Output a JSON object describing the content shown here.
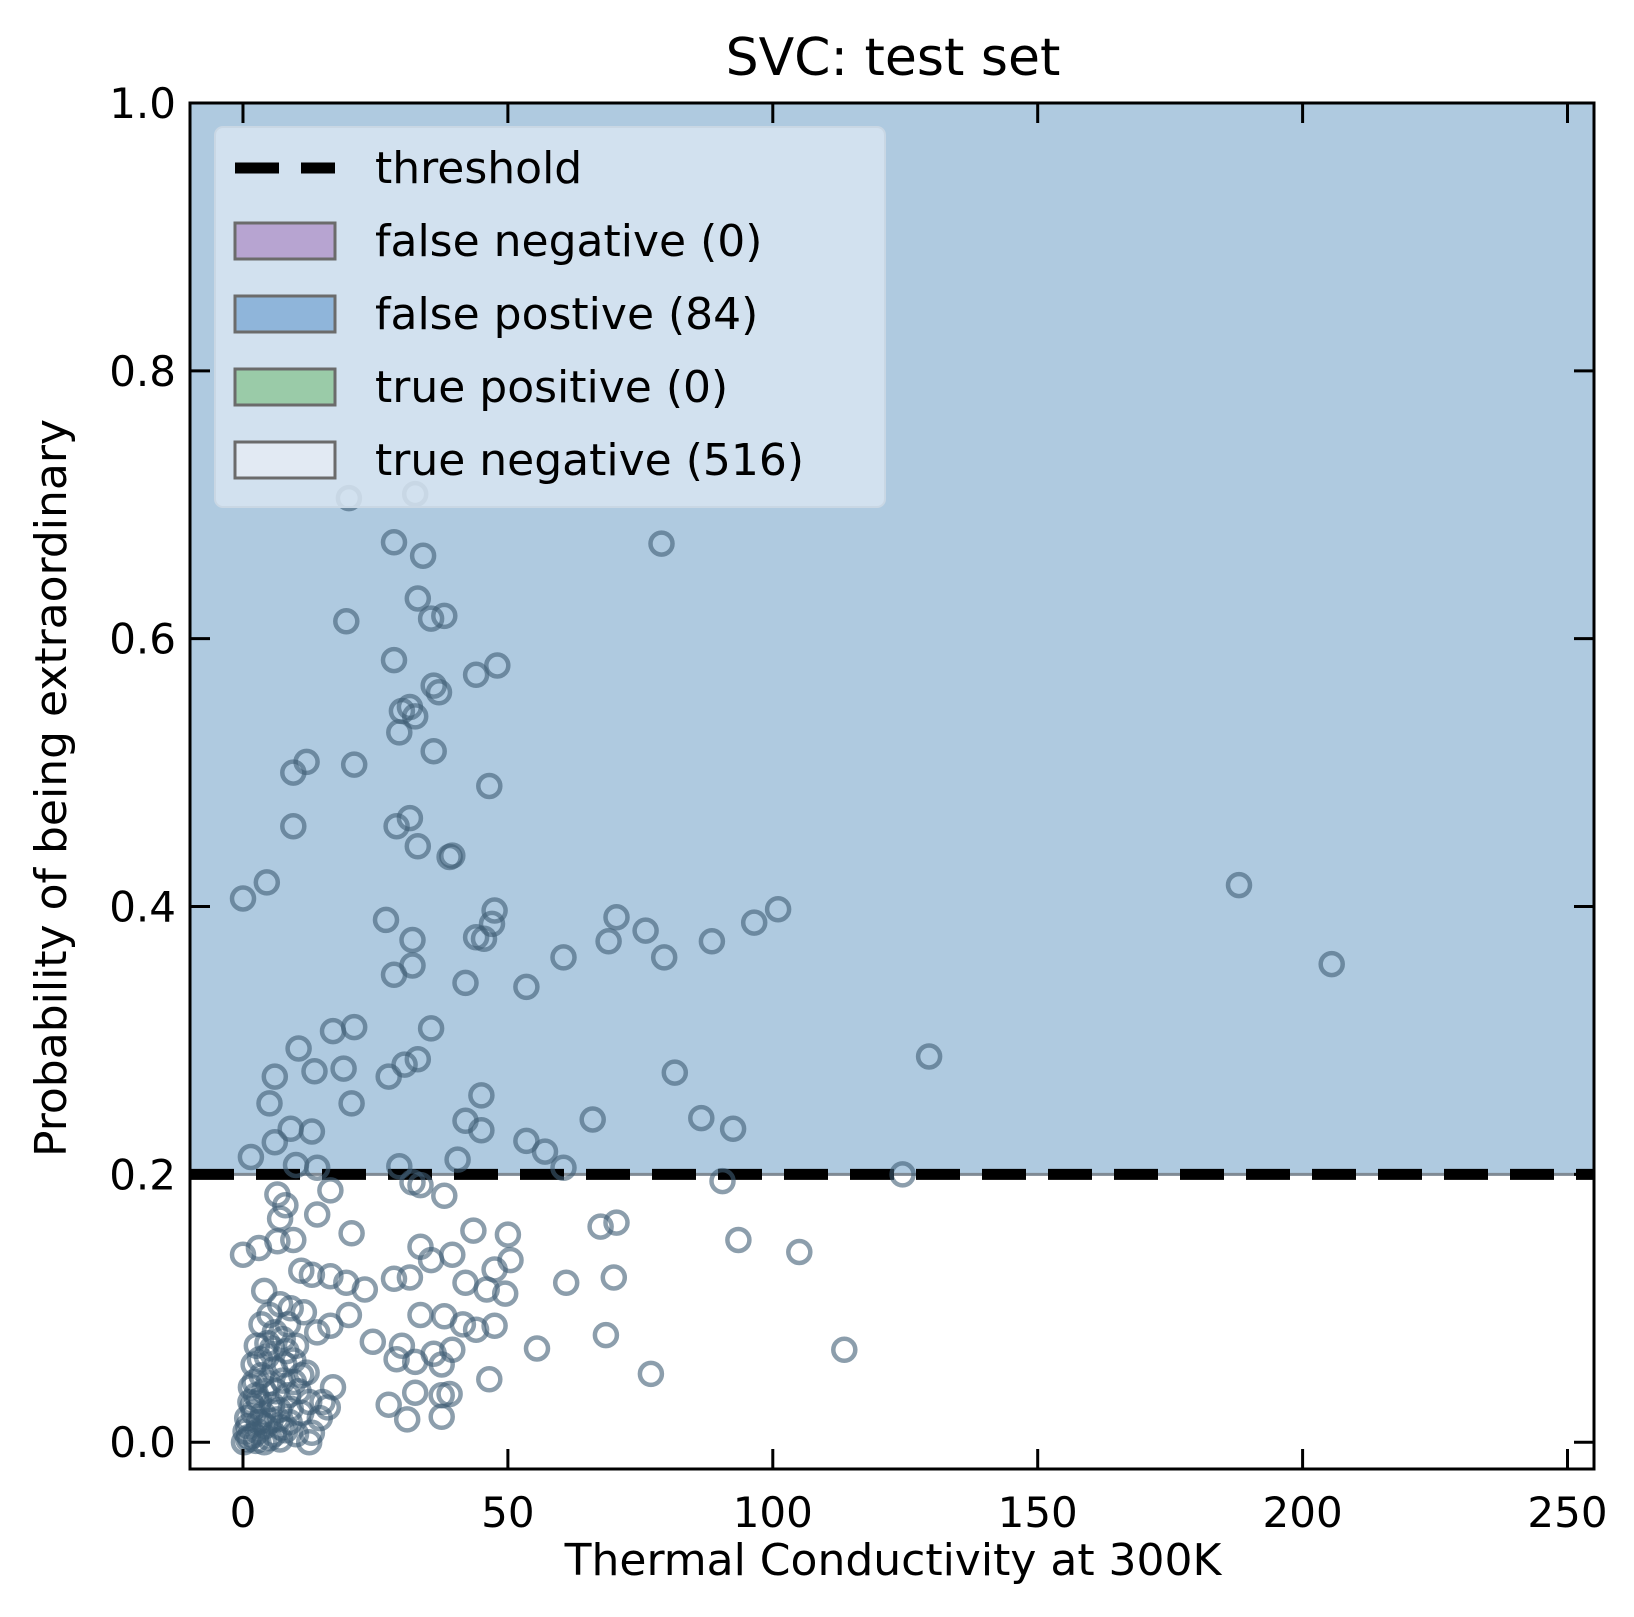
{
  "chart_data": {
    "type": "scatter",
    "title": "SVC: test set",
    "xlabel": "Thermal Conductivity at 300K",
    "ylabel": "Probability of being extraordinary",
    "xlim": [
      -10,
      255
    ],
    "ylim": [
      -0.02,
      1.0
    ],
    "xticks": [
      0,
      50,
      100,
      150,
      200,
      250
    ],
    "xtick_labels": [
      "0",
      "50",
      "100",
      "150",
      "200",
      "250"
    ],
    "yticks": [
      0.0,
      0.2,
      0.4,
      0.6,
      0.8,
      1.0
    ],
    "ytick_labels": [
      "0.0",
      "0.2",
      "0.4",
      "0.6",
      "0.8",
      "1.0"
    ],
    "threshold": 0.2,
    "grid": false,
    "legend_position": "top-left",
    "legend": [
      {
        "label": "threshold",
        "kind": "line",
        "color": "#000000"
      },
      {
        "label": "false negative (0)",
        "kind": "patch",
        "color": "#b7a4d1"
      },
      {
        "label": "false postive (84)",
        "kind": "patch",
        "color": "#8fb5da"
      },
      {
        "label": "true positive (0)",
        "kind": "patch",
        "color": "#9acba8"
      },
      {
        "label": "true negative (516)",
        "kind": "patch",
        "color": "#e2eaf3"
      }
    ],
    "regions": {
      "above_threshold_color": "#afcae0",
      "below_threshold_color": "#ffffff"
    },
    "marker_color": "#3f5d75",
    "series": [
      {
        "points": [
          [
            20,
            0.705
          ],
          [
            32.5,
            0.708
          ],
          [
            28.5,
            0.672
          ],
          [
            34,
            0.662
          ],
          [
            79,
            0.671
          ],
          [
            19.5,
            0.613
          ],
          [
            33,
            0.63
          ],
          [
            35.5,
            0.615
          ],
          [
            38,
            0.617
          ],
          [
            28.5,
            0.584
          ],
          [
            44,
            0.573
          ],
          [
            48,
            0.58
          ],
          [
            36,
            0.565
          ],
          [
            37,
            0.56
          ],
          [
            30,
            0.546
          ],
          [
            31.5,
            0.549
          ],
          [
            32.5,
            0.542
          ],
          [
            29.5,
            0.53
          ],
          [
            12,
            0.508
          ],
          [
            21,
            0.506
          ],
          [
            9.5,
            0.5
          ],
          [
            36,
            0.516
          ],
          [
            46.5,
            0.49
          ],
          [
            31.5,
            0.466
          ],
          [
            9.5,
            0.46
          ],
          [
            29,
            0.46
          ],
          [
            33,
            0.445
          ],
          [
            39,
            0.437
          ],
          [
            39.5,
            0.438
          ],
          [
            0,
            0.406
          ],
          [
            4.5,
            0.418
          ],
          [
            188,
            0.416
          ],
          [
            27,
            0.39
          ],
          [
            32,
            0.375
          ],
          [
            44,
            0.377
          ],
          [
            45.5,
            0.376
          ],
          [
            47,
            0.387
          ],
          [
            47.5,
            0.397
          ],
          [
            69,
            0.374
          ],
          [
            70.5,
            0.392
          ],
          [
            76,
            0.382
          ],
          [
            79.5,
            0.362
          ],
          [
            88.5,
            0.374
          ],
          [
            96.5,
            0.388
          ],
          [
            101,
            0.398
          ],
          [
            205.5,
            0.357
          ],
          [
            28.5,
            0.349
          ],
          [
            32,
            0.356
          ],
          [
            42,
            0.343
          ],
          [
            53.5,
            0.34
          ],
          [
            60.5,
            0.362
          ],
          [
            17,
            0.307
          ],
          [
            21,
            0.31
          ],
          [
            10.5,
            0.294
          ],
          [
            35.5,
            0.309
          ],
          [
            6,
            0.273
          ],
          [
            13.5,
            0.277
          ],
          [
            19,
            0.279
          ],
          [
            27.5,
            0.273
          ],
          [
            30.5,
            0.282
          ],
          [
            33,
            0.286
          ],
          [
            81.5,
            0.276
          ],
          [
            129.5,
            0.288
          ],
          [
            5,
            0.253
          ],
          [
            20.5,
            0.253
          ],
          [
            45,
            0.259
          ],
          [
            42,
            0.24
          ],
          [
            45,
            0.233
          ],
          [
            9,
            0.234
          ],
          [
            13,
            0.232
          ],
          [
            6,
            0.224
          ],
          [
            53.5,
            0.225
          ],
          [
            57,
            0.217
          ],
          [
            66,
            0.241
          ],
          [
            86.5,
            0.242
          ],
          [
            92.5,
            0.234
          ],
          [
            1.5,
            0.213
          ],
          [
            10,
            0.207
          ],
          [
            14,
            0.205
          ],
          [
            29.5,
            0.206
          ],
          [
            40.5,
            0.211
          ],
          [
            60.5,
            0.205
          ],
          [
            124.5,
            0.2
          ],
          [
            90.5,
            0.195
          ],
          [
            32,
            0.194
          ],
          [
            33.5,
            0.192
          ],
          [
            38,
            0.184
          ],
          [
            6.5,
            0.185
          ],
          [
            16.5,
            0.188
          ],
          [
            8,
            0.177
          ],
          [
            14,
            0.17
          ],
          [
            7,
            0.167
          ],
          [
            20.5,
            0.156
          ],
          [
            0,
            0.14
          ],
          [
            6.5,
            0.15
          ],
          [
            9.5,
            0.151
          ],
          [
            3,
            0.145
          ],
          [
            11,
            0.128
          ],
          [
            13,
            0.125
          ],
          [
            16.5,
            0.124
          ],
          [
            19.5,
            0.119
          ],
          [
            23,
            0.114
          ],
          [
            33.5,
            0.146
          ],
          [
            35.5,
            0.136
          ],
          [
            39.5,
            0.14
          ],
          [
            42,
            0.119
          ],
          [
            43.5,
            0.158
          ],
          [
            46,
            0.114
          ],
          [
            47.5,
            0.129
          ],
          [
            50,
            0.155
          ],
          [
            50.5,
            0.136
          ],
          [
            49.5,
            0.111
          ],
          [
            28.5,
            0.122
          ],
          [
            31.5,
            0.123
          ],
          [
            67.5,
            0.161
          ],
          [
            70.5,
            0.164
          ],
          [
            70,
            0.123
          ],
          [
            61,
            0.119
          ],
          [
            93.5,
            0.151
          ],
          [
            105,
            0.142
          ],
          [
            4,
            0.113
          ],
          [
            7,
            0.103
          ],
          [
            9,
            0.1
          ],
          [
            11.5,
            0.097
          ],
          [
            14,
            0.082
          ],
          [
            16.5,
            0.087
          ],
          [
            20,
            0.095
          ],
          [
            24.5,
            0.075
          ],
          [
            29,
            0.062
          ],
          [
            30,
            0.072
          ],
          [
            32.5,
            0.06
          ],
          [
            33.5,
            0.095
          ],
          [
            38,
            0.094
          ],
          [
            39.5,
            0.069
          ],
          [
            41.5,
            0.088
          ],
          [
            44,
            0.084
          ],
          [
            47.5,
            0.087
          ],
          [
            36,
            0.066
          ],
          [
            37.5,
            0.058
          ],
          [
            55.5,
            0.07
          ],
          [
            68.5,
            0.08
          ],
          [
            77,
            0.051
          ],
          [
            113.5,
            0.069
          ],
          [
            46.5,
            0.047
          ],
          [
            27.5,
            0.028
          ],
          [
            32.5,
            0.037
          ],
          [
            31,
            0.017
          ],
          [
            37.5,
            0.035
          ],
          [
            39,
            0.036
          ],
          [
            37.5,
            0.019
          ],
          [
            17,
            0.041
          ],
          [
            15,
            0.03
          ],
          [
            16,
            0.026
          ],
          [
            12,
            0.052
          ],
          [
            11,
            0.022
          ],
          [
            13,
            0.007
          ],
          [
            12.5,
            0.0
          ],
          [
            10,
            0.006
          ],
          [
            7,
            0.002
          ],
          [
            2.5,
            0.001
          ],
          [
            4,
            0.0
          ],
          [
            5,
            0.003
          ],
          [
            1,
            0.012
          ],
          [
            2,
            0.022
          ],
          [
            3,
            0.031
          ],
          [
            1.5,
            0.041
          ],
          [
            3.5,
            0.05
          ],
          [
            2,
            0.058
          ],
          [
            4.5,
            0.064
          ],
          [
            5.5,
            0.07
          ],
          [
            6,
            0.055
          ],
          [
            7.5,
            0.046
          ],
          [
            8.5,
            0.035
          ],
          [
            9,
            0.025
          ],
          [
            6.5,
            0.017
          ],
          [
            8,
            0.009
          ],
          [
            5.5,
            0.028
          ],
          [
            4,
            0.038
          ],
          [
            3,
            0.015
          ],
          [
            2,
            0.005
          ],
          [
            1,
            0.002
          ],
          [
            0.5,
            0.008
          ],
          [
            6,
            0.082
          ],
          [
            7.5,
            0.077
          ],
          [
            3.5,
            0.088
          ],
          [
            5,
            0.095
          ],
          [
            8.5,
            0.088
          ],
          [
            10,
            0.072
          ],
          [
            9.5,
            0.061
          ],
          [
            11,
            0.05
          ],
          [
            10.5,
            0.038
          ],
          [
            12.5,
            0.03
          ],
          [
            14.5,
            0.018
          ],
          [
            0.2,
            0.0
          ],
          [
            1.2,
            0.004
          ],
          [
            2.8,
            0.008
          ],
          [
            4.2,
            0.012
          ],
          [
            5.8,
            0.006
          ],
          [
            7.2,
            0.011
          ],
          [
            8.8,
            0.015
          ],
          [
            3.8,
            0.021
          ],
          [
            1.8,
            0.027
          ],
          [
            4.8,
            0.044
          ],
          [
            2.5,
            0.035
          ],
          [
            0.8,
            0.018
          ],
          [
            6.8,
            0.024
          ],
          [
            5.2,
            0.016
          ],
          [
            3.2,
            0.062
          ],
          [
            1.4,
            0.03
          ],
          [
            2.2,
            0.045
          ],
          [
            7.8,
            0.058
          ],
          [
            6.2,
            0.038
          ],
          [
            4.6,
            0.074
          ],
          [
            2.6,
            0.072
          ],
          [
            8.2,
            0.068
          ],
          [
            9.6,
            0.045
          ]
        ]
      }
    ]
  }
}
